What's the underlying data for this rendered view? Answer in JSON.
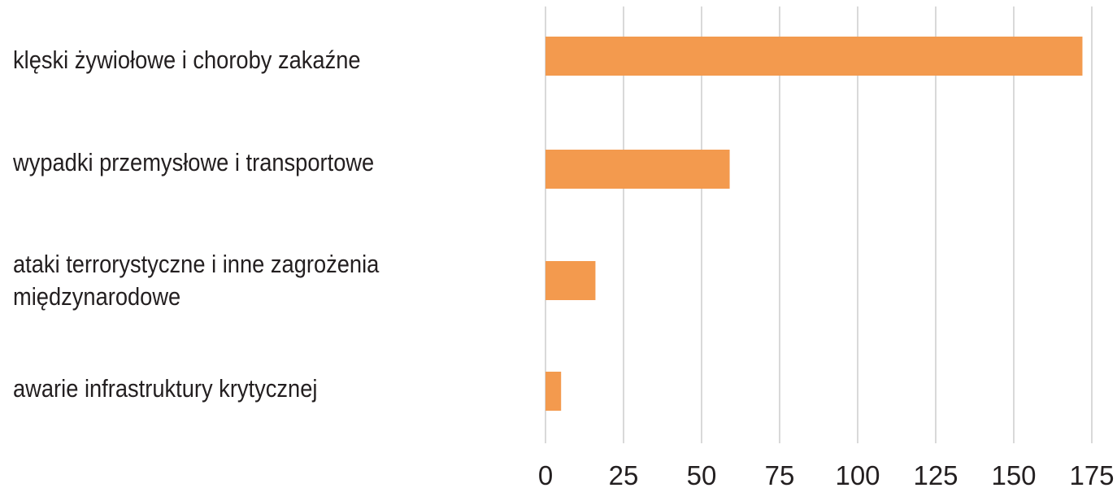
{
  "chart_data": {
    "type": "bar",
    "orientation": "horizontal",
    "title": "",
    "xlabel": "",
    "ylabel": "",
    "categories": [
      "klęski żywiołowe i choroby zakaźne",
      "wypadki przemysłowe i transportowe",
      "ataki terrorystyczne i inne zagrożenia międzynarodowe",
      "awarie infrastruktury krytycznej"
    ],
    "values": [
      172,
      59,
      16,
      5
    ],
    "xlim": [
      0,
      175
    ],
    "ticks": [
      "0",
      "25",
      "50",
      "75",
      "100",
      "125",
      "150",
      "175"
    ],
    "grid": "vertical",
    "bar_color": "#F39A4E",
    "grid_color": "#d9d9d9"
  }
}
